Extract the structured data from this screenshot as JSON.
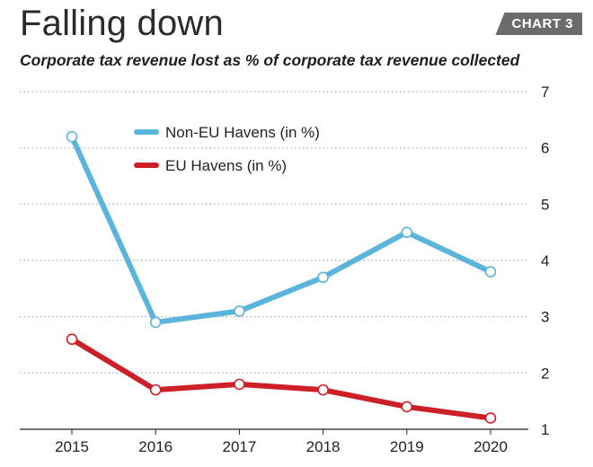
{
  "header": {
    "title": "Falling down",
    "badge": "CHART 3",
    "subtitle": "Corporate tax revenue lost as % of corporate tax revenue collected"
  },
  "colors": {
    "non_eu": "#5ab4dc",
    "eu": "#cc1f27",
    "grid": "#b5b5b5",
    "marker_fill": "#ffffff",
    "badge_bg": "#6b6b6b"
  },
  "chart_data": {
    "type": "line",
    "x": [
      "2015",
      "2016",
      "2017",
      "2018",
      "2019",
      "2020"
    ],
    "series": [
      {
        "name": "Non-EU Havens (in %)",
        "color": "#5ab4dc",
        "values": [
          6.2,
          2.9,
          3.1,
          3.7,
          4.5,
          3.8
        ]
      },
      {
        "name": "EU Havens (in %)",
        "color": "#cc1f27",
        "values": [
          2.6,
          1.7,
          1.8,
          1.7,
          1.4,
          1.2
        ]
      }
    ],
    "ylim": [
      1,
      7
    ],
    "yticks": [
      "1",
      "2",
      "3",
      "4",
      "5",
      "6",
      "7"
    ],
    "y_axis_position": "right",
    "grid": true,
    "legend_position": "top-center"
  }
}
